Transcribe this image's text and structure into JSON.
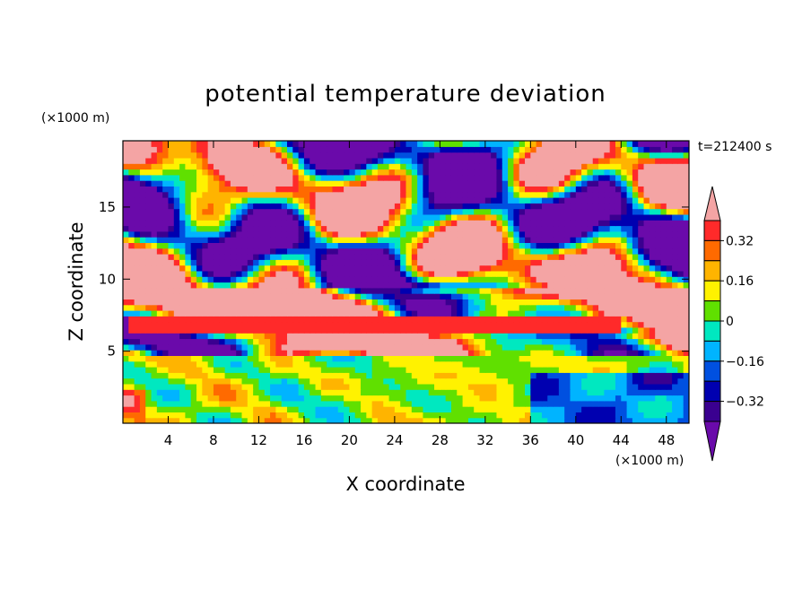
{
  "chart_data": {
    "type": "heatmap",
    "title": "potential temperature deviation",
    "xlabel": "X coordinate",
    "ylabel": "Z coordinate",
    "x_unit": "(×1000 m)",
    "y_unit": "(×1000 m)",
    "time_label": "t=212400 s",
    "xlim": [
      0,
      50
    ],
    "ylim": [
      0,
      19.6
    ],
    "x_ticks": [
      4,
      8,
      12,
      16,
      20,
      24,
      28,
      32,
      36,
      40,
      44,
      48
    ],
    "y_ticks": [
      5,
      10,
      15
    ],
    "colorbar": {
      "levels": [
        -0.4,
        -0.32,
        -0.24,
        -0.16,
        -0.08,
        0,
        0.08,
        0.16,
        0.24,
        0.32,
        0.4
      ],
      "labeled_levels": [
        -0.32,
        -0.16,
        0,
        0.16,
        0.32
      ],
      "colors": [
        "#3a0090",
        "#0000b0",
        "#0050e0",
        "#00b4ff",
        "#00e8c0",
        "#60e000",
        "#fff200",
        "#ffb400",
        "#ff6a00",
        "#ff2a2a"
      ],
      "under_color": "#6a0aaa",
      "over_color": "#f4a4a4"
    },
    "regions": [
      {
        "desc": "lower layer",
        "z_range": [
          0,
          5
        ],
        "dominant": "mixed -0.24..0.32"
      },
      {
        "desc": "warm band",
        "z_range": [
          6.2,
          7.5
        ],
        "x_range": [
          0.5,
          44
        ],
        "value": 0.36
      },
      {
        "desc": "upper layer",
        "z_range": [
          7.5,
          19.6
        ],
        "dominant": "over / under alternating"
      }
    ]
  }
}
